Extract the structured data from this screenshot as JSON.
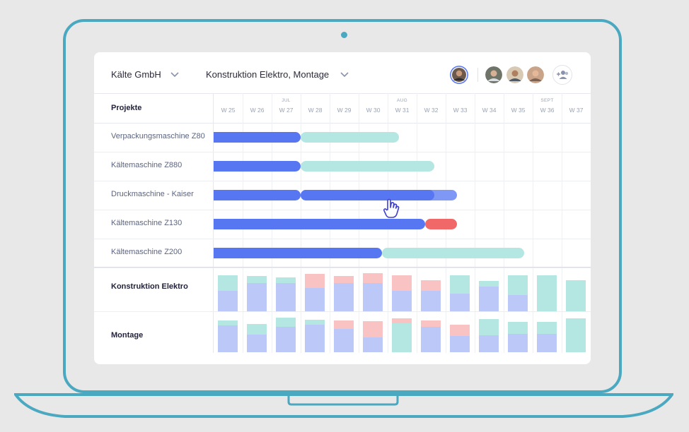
{
  "topbar": {
    "company": "Kälte GmbH",
    "teams": "Konstruktion Elektro,  Montage"
  },
  "table": {
    "column_title": "Projekte"
  },
  "weeks": [
    "W 25",
    "W 26",
    "W 27",
    "W 28",
    "W 29",
    "W 30",
    "W 31",
    "W 32",
    "W 33",
    "W 34",
    "W 35",
    "W 36",
    "W 37"
  ],
  "months": [
    {
      "label": "JUL",
      "week_index": 2
    },
    {
      "label": "AUG",
      "week_index": 6
    },
    {
      "label": "SEPT",
      "week_index": 11
    }
  ],
  "colors": {
    "planned": "#5777f2",
    "planned_light": "#7f98f5",
    "upcoming": "#b5e7e2",
    "overdue": "#f06868",
    "cap_blue": "#bcc8f8",
    "cap_teal": "#b5e7e2",
    "cap_red": "#f9c3c3",
    "frame": "#4aa9c0"
  },
  "projects": [
    {
      "name": "Verpackungsmaschine Z80",
      "bars": [
        {
          "start": 0,
          "end": 3,
          "color": "planned"
        },
        {
          "start": 3,
          "end": 6.4,
          "color": "upcoming"
        }
      ]
    },
    {
      "name": "Kältemaschine Z880",
      "bars": [
        {
          "start": 0,
          "end": 3,
          "color": "planned"
        },
        {
          "start": 3,
          "end": 7.6,
          "color": "upcoming"
        }
      ]
    },
    {
      "name": "Druckmaschine - Kaiser",
      "bars": [
        {
          "start": 0,
          "end": 3,
          "color": "planned"
        },
        {
          "start": 3,
          "end": 8.4,
          "color": "planned_light"
        },
        {
          "start": 3,
          "end": 7.6,
          "color": "planned"
        }
      ]
    },
    {
      "name": "Kältemaschine Z130",
      "bars": [
        {
          "start": 0,
          "end": 7.3,
          "color": "planned"
        },
        {
          "start": 7.3,
          "end": 8.4,
          "color": "overdue"
        }
      ]
    },
    {
      "name": "Kältemaschine Z200",
      "bars": [
        {
          "start": 0,
          "end": 5.8,
          "color": "planned"
        },
        {
          "start": 5.8,
          "end": 10.7,
          "color": "upcoming"
        }
      ]
    }
  ],
  "resources": [
    {
      "name": "Konstruktion Elektro",
      "weeks": [
        {
          "blue": 0.58,
          "teal": 0.42,
          "red": 0
        },
        {
          "blue": 0.78,
          "teal": 0.2,
          "red": 0
        },
        {
          "blue": 0.78,
          "teal": 0.16,
          "red": 0
        },
        {
          "blue": 0.66,
          "teal": 0,
          "red": 0.38
        },
        {
          "blue": 0.78,
          "teal": 0,
          "red": 0.2
        },
        {
          "blue": 0.78,
          "teal": 0,
          "red": 0.28
        },
        {
          "blue": 0.58,
          "teal": 0,
          "red": 0.42
        },
        {
          "blue": 0.58,
          "teal": 0,
          "red": 0.28
        },
        {
          "blue": 0.5,
          "teal": 0.5,
          "red": 0
        },
        {
          "blue": 0.7,
          "teal": 0.14,
          "red": 0
        },
        {
          "blue": 0.46,
          "teal": 0.54,
          "red": 0
        },
        {
          "blue": 0,
          "teal": 1.0,
          "red": 0
        },
        {
          "blue": 0,
          "teal": 0.86,
          "red": 0
        }
      ]
    },
    {
      "name": "Montage",
      "weeks": [
        {
          "blue": 0.8,
          "teal": 0.14,
          "red": 0
        },
        {
          "blue": 0.52,
          "teal": 0.32,
          "red": 0
        },
        {
          "blue": 0.76,
          "teal": 0.26,
          "red": 0
        },
        {
          "blue": 0.82,
          "teal": 0.14,
          "red": 0
        },
        {
          "blue": 0.68,
          "teal": 0,
          "red": 0.26
        },
        {
          "blue": 0.44,
          "teal": 0,
          "red": 0.48
        },
        {
          "blue": 0,
          "teal": 0.86,
          "red": 0.14
        },
        {
          "blue": 0.76,
          "teal": 0,
          "red": 0.18
        },
        {
          "blue": 0.48,
          "teal": 0,
          "red": 0.34
        },
        {
          "blue": 0.5,
          "teal": 0.48,
          "red": 0
        },
        {
          "blue": 0.54,
          "teal": 0.36,
          "red": 0
        },
        {
          "blue": 0.54,
          "teal": 0.36,
          "red": 0
        },
        {
          "blue": 0,
          "teal": 1.0,
          "red": 0
        }
      ]
    }
  ],
  "avatars": [
    "user-avatar-active",
    "team-member-avatar-1",
    "team-member-avatar-2",
    "team-member-avatar-3"
  ]
}
